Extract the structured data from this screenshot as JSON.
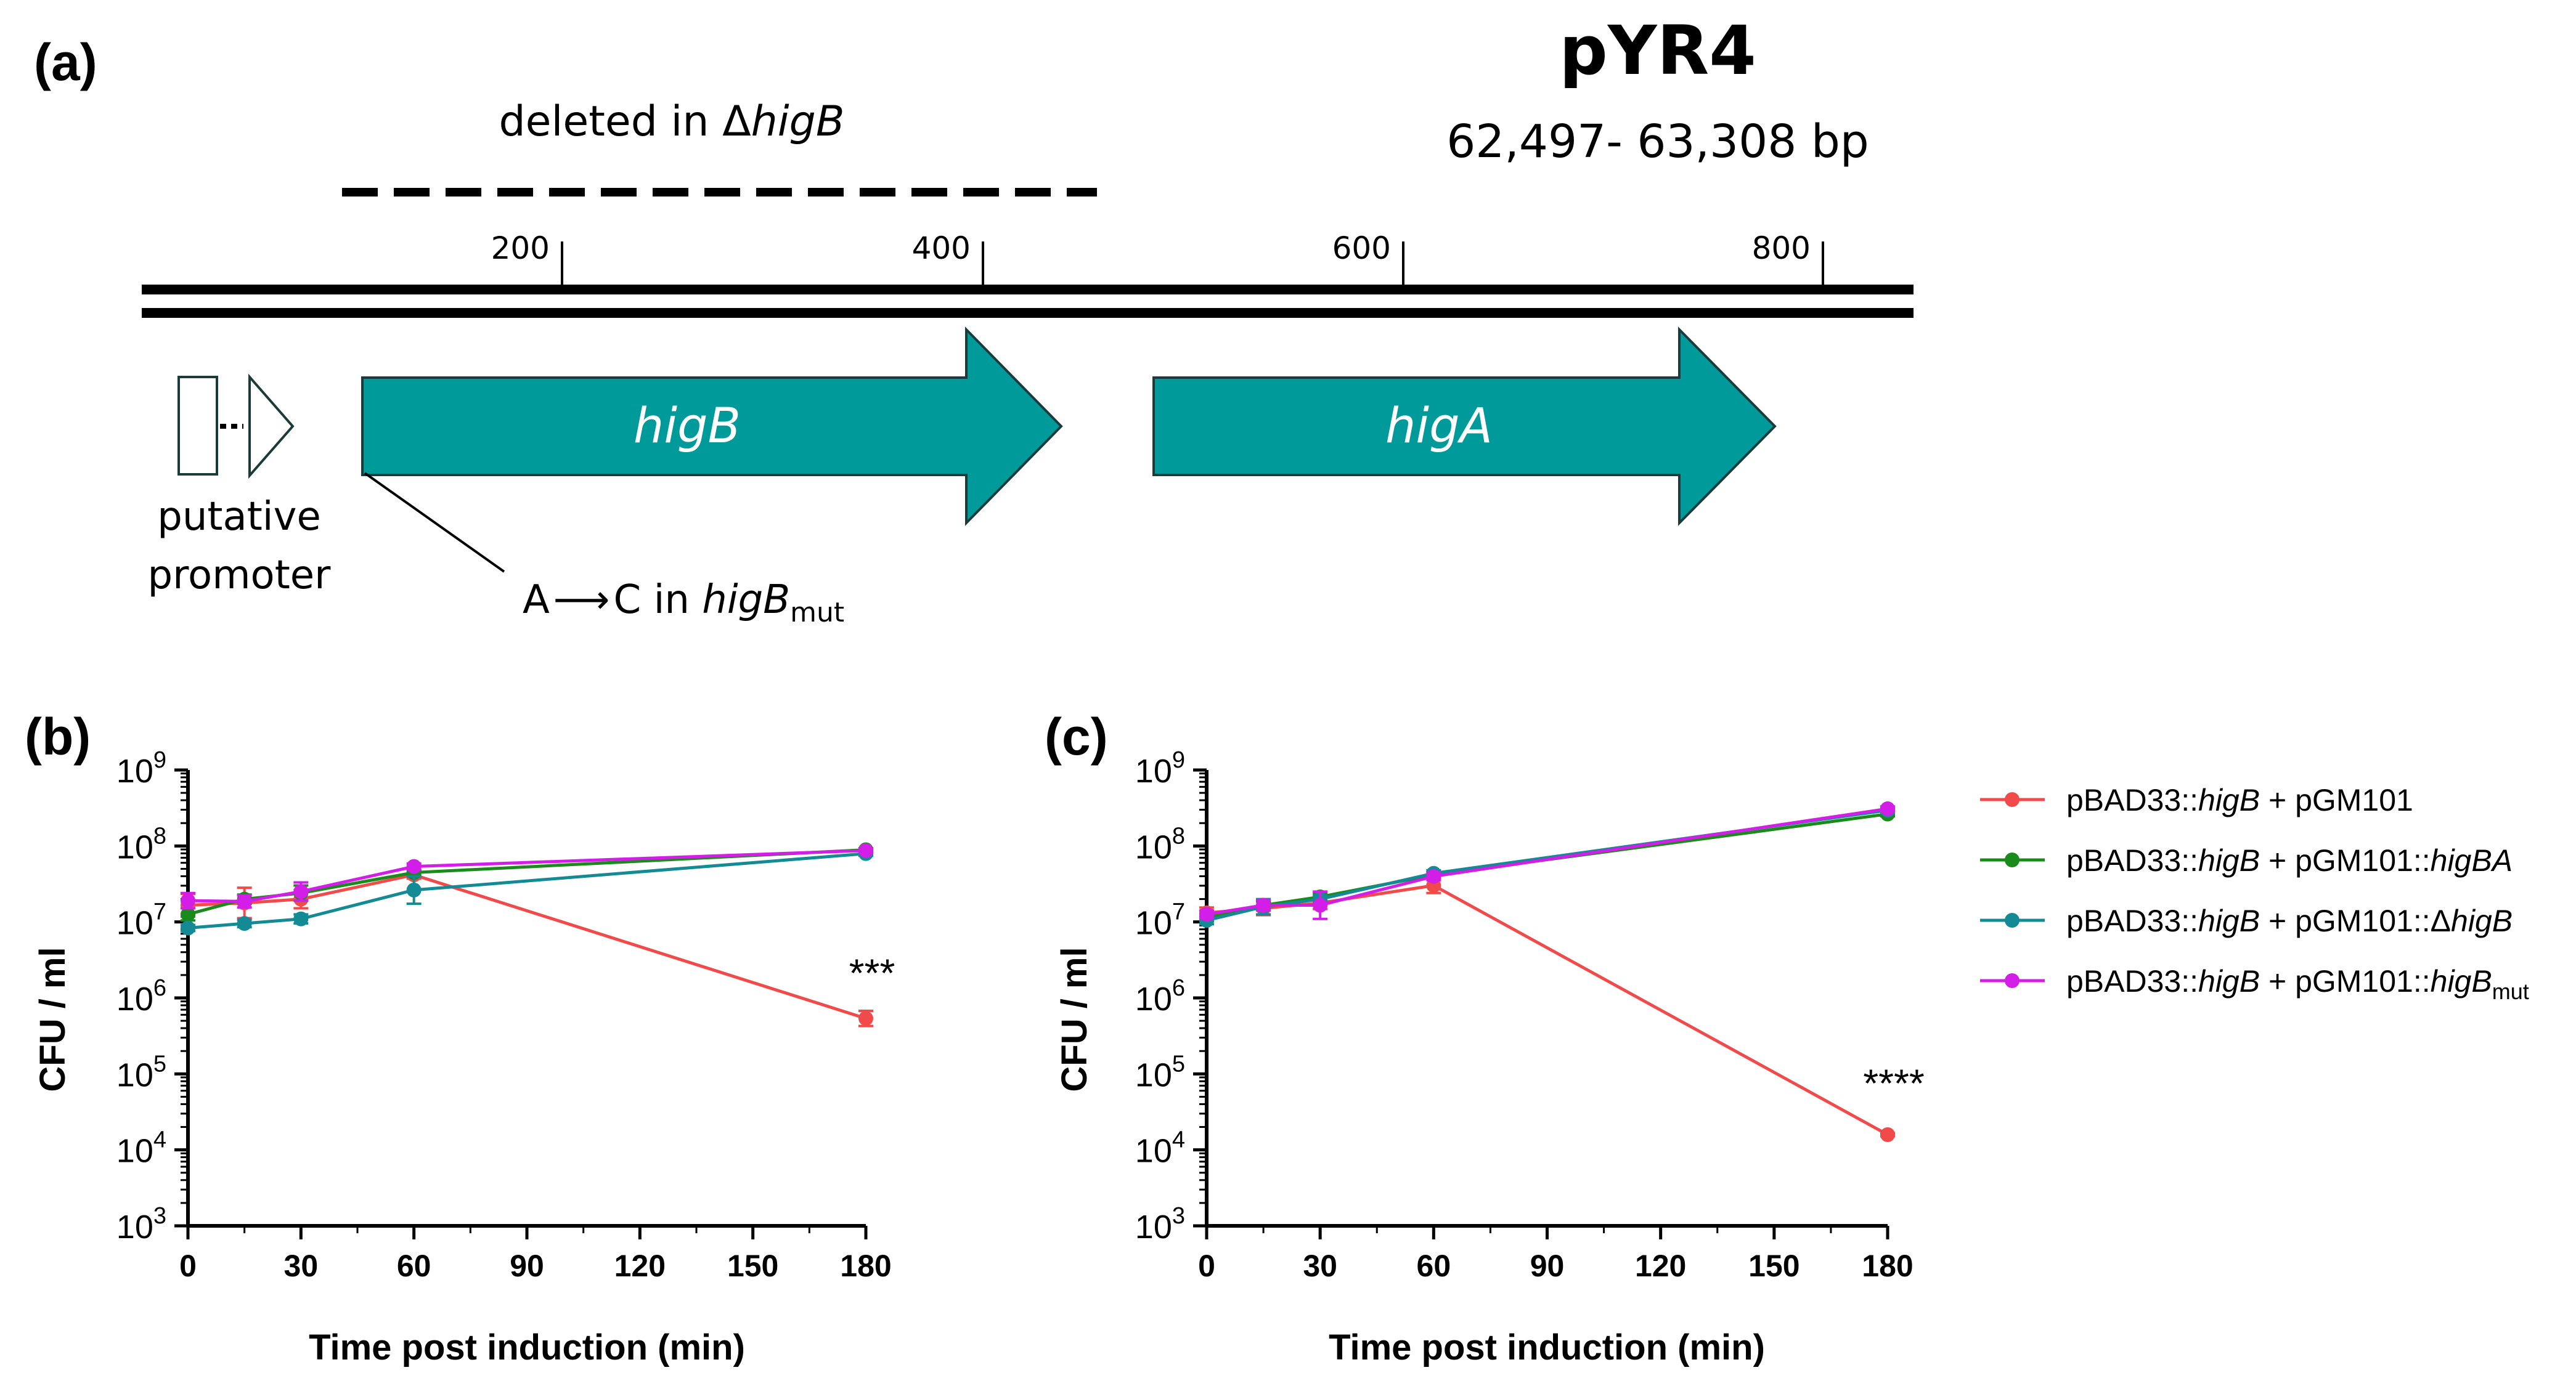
{
  "panel_a": {
    "label": "(a)",
    "plasmid_name": "pYR4",
    "coordinates": "62,497- 63,308 bp",
    "deletion_label_prefix": "deleted in ",
    "deletion_label_delta": "Δ",
    "deletion_label_gene": "higB",
    "ruler_ticks": [
      "200",
      "400",
      "600",
      "800"
    ],
    "gene1": "higB",
    "gene2": "higA",
    "promoter_label_line1": "putative",
    "promoter_label_line2": "promoter",
    "mutation_label_prefix": "A",
    "mutation_arrow": "⟶",
    "mutation_label_mid": "C in ",
    "mutation_label_gene": "higB",
    "mutation_label_sub": "mut",
    "colors": {
      "gene": "#009a9a",
      "gene_stroke": "#1b3b3b"
    }
  },
  "legend": {
    "entries": [
      {
        "prefix": "pBAD33::",
        "gene": "higB",
        "mid": " + pGM101",
        "suffix_italic": "",
        "delta": "",
        "sub": "",
        "color": "#f04a4a"
      },
      {
        "prefix": "pBAD33::",
        "gene": "higB",
        "mid": " + pGM101::",
        "suffix_italic": "higBA",
        "delta": "",
        "sub": "",
        "color": "#1a8a1a"
      },
      {
        "prefix": "pBAD33::",
        "gene": "higB",
        "mid": " + pGM101::",
        "suffix_italic": "higB",
        "delta": "Δ",
        "sub": "",
        "color": "#138a94"
      },
      {
        "prefix": "pBAD33::",
        "gene": "higB",
        "mid": " + pGM101::",
        "suffix_italic": "higB",
        "delta": "",
        "sub": "mut",
        "color": "#d21ee6"
      }
    ]
  },
  "chart_data": [
    {
      "panel": "(b)",
      "type": "line",
      "xlabel": "Time post induction (min)",
      "ylabel": "CFU / ml",
      "xlim": [
        0,
        180
      ],
      "xticks": [
        0,
        30,
        60,
        90,
        120,
        150,
        180
      ],
      "yscale": "log",
      "ylim_exp": [
        3,
        9
      ],
      "annotation": {
        "text": "***",
        "x": 180,
        "y_exp": 6.15
      },
      "x": [
        0,
        15,
        30,
        60,
        180
      ],
      "series": [
        {
          "name": "pBAD33::higB + pGM101",
          "color": "#f04a4a",
          "values_exp": [
            7.22,
            7.25,
            7.3,
            7.62,
            5.73
          ],
          "err_exp": [
            0.15,
            0.2,
            0.12,
            0.05,
            0.1
          ]
        },
        {
          "name": "pBAD33::higB + pGM101::higBA",
          "color": "#1a8a1a",
          "values_exp": [
            7.1,
            7.3,
            7.38,
            7.65,
            7.95
          ],
          "err_exp": [
            0.08,
            0.06,
            0.1,
            0.04,
            0.02
          ]
        },
        {
          "name": "pBAD33::higB + pGM101::ΔhigB",
          "color": "#138a94",
          "values_exp": [
            6.92,
            6.98,
            7.04,
            7.42,
            7.9
          ],
          "err_exp": [
            0.04,
            0.05,
            0.06,
            0.18,
            0.03
          ]
        },
        {
          "name": "pBAD33::higB + pGM101::higBmut",
          "color": "#d21ee6",
          "values_exp": [
            7.28,
            7.27,
            7.4,
            7.73,
            7.94
          ],
          "err_exp": [
            0.1,
            0.08,
            0.12,
            0.04,
            0.02
          ]
        }
      ]
    },
    {
      "panel": "(c)",
      "type": "line",
      "xlabel": "Time post induction (min)",
      "ylabel": "CFU / ml",
      "xlim": [
        0,
        180
      ],
      "xticks": [
        0,
        30,
        60,
        90,
        120,
        150,
        180
      ],
      "yscale": "log",
      "ylim_exp": [
        3,
        9
      ],
      "annotation": {
        "text": "****",
        "x": 180,
        "y_exp": 4.7
      },
      "x": [
        0,
        15,
        30,
        60,
        180
      ],
      "series": [
        {
          "name": "pBAD33::higB + pGM101",
          "color": "#f04a4a",
          "values_exp": [
            7.12,
            7.18,
            7.25,
            7.48,
            4.2
          ],
          "err_exp": [
            0.07,
            0.09,
            0.08,
            0.1,
            0.02
          ]
        },
        {
          "name": "pBAD33::higB + pGM101::higBA",
          "color": "#1a8a1a",
          "values_exp": [
            7.06,
            7.22,
            7.33,
            7.62,
            8.42
          ],
          "err_exp": [
            0.05,
            0.05,
            0.05,
            0.04,
            0.03
          ]
        },
        {
          "name": "pBAD33::higB + pGM101::ΔhigB",
          "color": "#138a94",
          "values_exp": [
            7.02,
            7.2,
            7.3,
            7.64,
            8.47
          ],
          "err_exp": [
            0.05,
            0.1,
            0.05,
            0.04,
            0.03
          ]
        },
        {
          "name": "pBAD33::higB + pGM101::higBmut",
          "color": "#d21ee6",
          "values_exp": [
            7.1,
            7.22,
            7.22,
            7.6,
            8.49
          ],
          "err_exp": [
            0.05,
            0.07,
            0.18,
            0.05,
            0.03
          ]
        }
      ]
    }
  ]
}
